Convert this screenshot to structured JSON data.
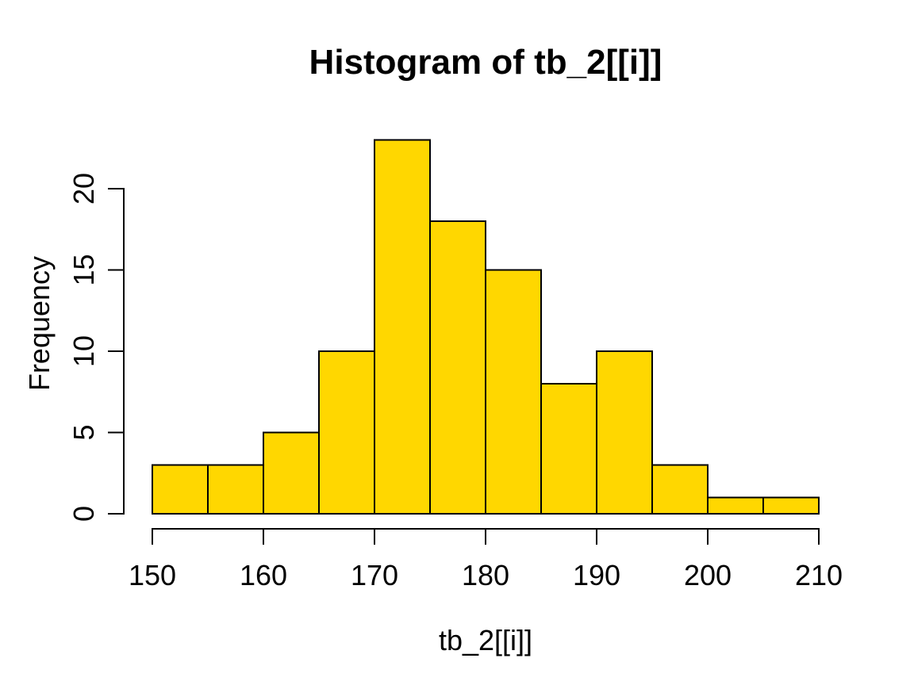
{
  "chart_data": {
    "type": "bar",
    "subtype": "histogram",
    "title": "Histogram of tb_2[[i]]",
    "xlabel": "tb_2[[i]]",
    "ylabel": "Frequency",
    "bin_edges": [
      150,
      155,
      160,
      165,
      170,
      175,
      180,
      185,
      190,
      195,
      200,
      205,
      210
    ],
    "counts": [
      3,
      3,
      5,
      10,
      23,
      18,
      15,
      8,
      10,
      3,
      1,
      1
    ],
    "x_ticks": [
      150,
      160,
      170,
      180,
      190,
      200,
      210
    ],
    "y_ticks": [
      0,
      5,
      10,
      15,
      20
    ],
    "xlim": [
      150,
      210
    ],
    "ylim": [
      0,
      23
    ],
    "grid": false,
    "legend": "none",
    "colors": {
      "bar_fill": "#FFD700",
      "bar_border": "#000000",
      "axis": "#000000",
      "text": "#000000",
      "background": "#FFFFFF"
    }
  }
}
